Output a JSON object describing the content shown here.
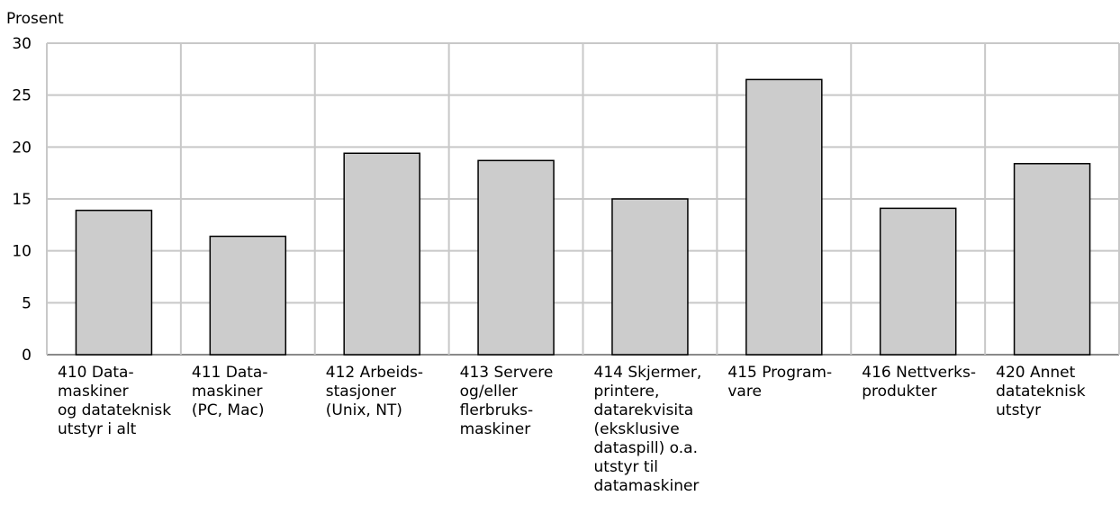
{
  "chart_data": {
    "type": "bar",
    "title": "",
    "xlabel": "",
    "ylabel": "Prosent",
    "ylim": [
      0,
      30
    ],
    "yticks": [
      0,
      5,
      10,
      15,
      20,
      25,
      30
    ],
    "grid": true,
    "categories": [
      "410 Data-maskiner og datateknisk utstyr i alt",
      "411 Data-maskiner (PC, Mac)",
      "412 Arbeids-stasjoner (Unix, NT)",
      "413 Servere og/eller flerbruks-maskiner",
      "414 Skjermer, printere, datarekvisita (eksklusive dataspill) o.a. utstyr til datamaskiner",
      "415 Program-vare",
      "416 Nettverks-produkter",
      "420 Annet datateknisk utstyr"
    ],
    "category_lines": [
      [
        "410 Data-",
        "maskiner",
        "og datateknisk",
        "utstyr i alt"
      ],
      [
        "411 Data-",
        "maskiner",
        "(PC, Mac)"
      ],
      [
        "412 Arbeids-",
        "stasjoner",
        "(Unix, NT)"
      ],
      [
        "413 Servere",
        "og/eller",
        "flerbruks-",
        "maskiner"
      ],
      [
        "414 Skjermer,",
        "printere,",
        "datarekvisita",
        "(eksklusive",
        "dataspill) o.a.",
        "utstyr til",
        "datamaskiner"
      ],
      [
        "415 Program-",
        "vare"
      ],
      [
        "416 Nettverks-",
        "produkter"
      ],
      [
        "420 Annet",
        "datateknisk",
        "utstyr"
      ]
    ],
    "values": [
      13.9,
      11.4,
      19.4,
      18.7,
      15.0,
      26.5,
      14.1,
      18.4
    ],
    "colors": {
      "bar_fill": "#cccccc",
      "bar_stroke": "#000000",
      "grid": "#c8c8c8"
    }
  }
}
